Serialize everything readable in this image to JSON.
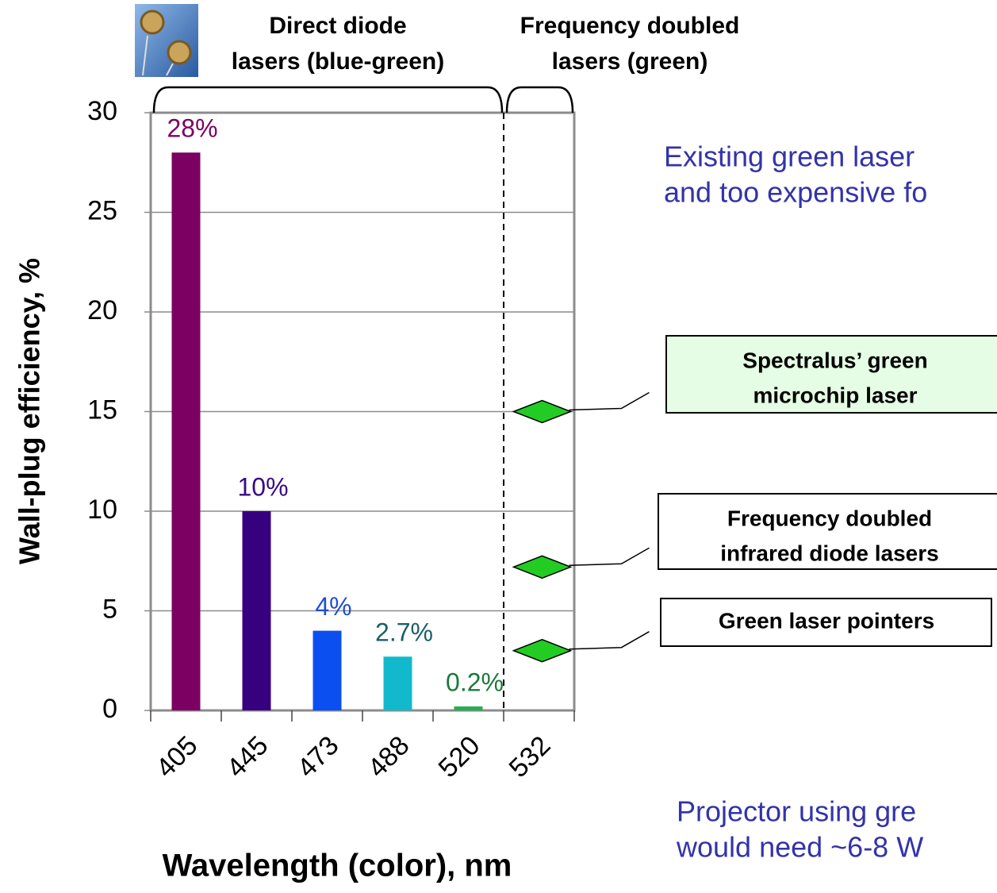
{
  "chart_data": {
    "type": "bar",
    "ylabel": "Wall-plug efficiency, %",
    "xlabel": "Wavelength (color), nm",
    "categories": [
      "405",
      "445",
      "473",
      "488",
      "520",
      "532"
    ],
    "values": [
      28,
      10,
      4,
      2.7,
      0.2,
      null
    ],
    "value_labels": [
      "28%",
      "10%",
      "4%",
      "2.7%",
      "0.2%",
      null
    ],
    "colors": [
      "#7b0062",
      "#37007e",
      "#0b4ff0",
      "#12b9cc",
      "#22b050",
      null
    ],
    "label_colors": [
      "#7b0062",
      "#3a0a80",
      "#1f4fd0",
      "#1a6068",
      "#1a7a3a",
      null
    ],
    "ylim": [
      0,
      30
    ],
    "yticks": [
      0,
      5,
      10,
      15,
      20,
      25,
      30
    ],
    "grid": true,
    "groups": [
      {
        "label": [
          "Direct diode",
          "lasers (blue-green)"
        ]
      },
      {
        "label": [
          "Frequency doubled",
          "lasers (green)"
        ]
      }
    ],
    "annotations": [
      {
        "text": [
          "Spectralus’ green",
          "microchip laser"
        ],
        "value": 15,
        "color": "#22cc22"
      },
      {
        "text": [
          "Frequency doubled",
          "infrared diode lasers"
        ],
        "value": 7.2,
        "color": "#22cc22"
      },
      {
        "text": [
          "Green laser pointers"
        ],
        "value": 3,
        "color": "#22cc22"
      }
    ],
    "notes": [
      [
        "Existing green laser",
        "and too expensive fo"
      ],
      [
        "Projector using gre",
        "would need ~6-8 W"
      ]
    ]
  }
}
